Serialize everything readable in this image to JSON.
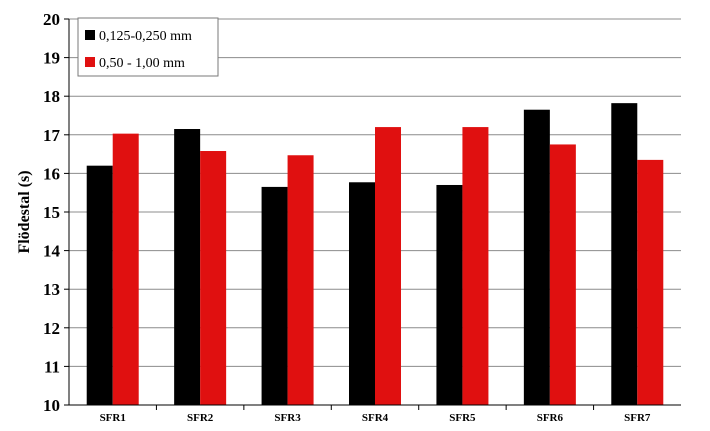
{
  "chart_data": {
    "type": "bar",
    "title": "",
    "xlabel": "",
    "ylabel": "Flödestal (s)",
    "ylim": [
      10,
      20
    ],
    "yticks": [
      10,
      11,
      12,
      13,
      14,
      15,
      16,
      17,
      18,
      19,
      20
    ],
    "grid": true,
    "legend_position": "top-left",
    "categories": [
      "SFR1",
      "SFR2",
      "SFR3",
      "SFR4",
      "SFR5",
      "SFR6",
      "SFR7"
    ],
    "series": [
      {
        "name": "0,125-0,250 mm",
        "color": "#000000",
        "values": [
          16.2,
          17.15,
          15.65,
          15.77,
          15.7,
          17.65,
          17.82
        ]
      },
      {
        "name": "0,50 - 1,00 mm",
        "color": "#e01010",
        "values": [
          17.03,
          16.58,
          16.47,
          17.2,
          17.2,
          16.75,
          16.35
        ]
      }
    ]
  }
}
